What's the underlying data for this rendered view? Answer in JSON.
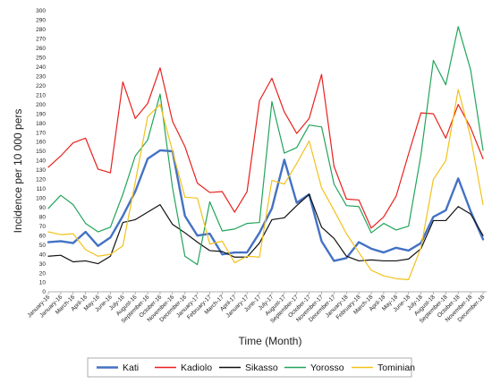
{
  "chart_data": {
    "type": "line",
    "xlabel": "Time (Month)",
    "ylabel": "Incidence per 10 000  pers",
    "ylim": [
      0,
      300
    ],
    "ytick_step": 10,
    "grid": false,
    "legend_position": "bottom",
    "categories": [
      "January-16",
      "January-16",
      "March-16",
      "April-16",
      "May-16",
      "June-16",
      "July-16",
      "August-16",
      "September-16",
      "October-16",
      "November-16",
      "December-16",
      "January-17",
      "February-17",
      "March-17",
      "April-17",
      "January-17",
      "June-17",
      "July-17",
      "August-17",
      "September-17",
      "October-17",
      "November-17",
      "December-17",
      "January-18",
      "February-18",
      "March-18",
      "April-18",
      "May-18",
      "June-18",
      "July-18",
      "August-18",
      "September-18",
      "October-18",
      "November-18",
      "December-18"
    ],
    "series": [
      {
        "name": "Kati",
        "color": "#4472C4",
        "width": 2.4,
        "values": [
          53,
          54,
          52,
          64,
          49,
          58,
          81,
          107,
          142,
          151,
          150,
          81,
          60,
          62,
          40,
          42,
          42,
          63,
          89,
          141,
          95,
          104,
          54,
          33,
          36,
          53,
          46,
          42,
          47,
          44,
          52,
          80,
          87,
          121,
          86,
          56
        ]
      },
      {
        "name": "Kadiolo",
        "color": "#E8211D",
        "width": 1.2,
        "values": [
          133,
          145,
          159,
          164,
          131,
          127,
          224,
          185,
          201,
          239,
          182,
          155,
          116,
          106,
          107,
          85,
          107,
          204,
          228,
          192,
          169,
          185,
          232,
          134,
          99,
          98,
          68,
          80,
          102,
          147,
          191,
          190,
          164,
          200,
          175,
          142
        ]
      },
      {
        "name": "Sikasso",
        "color": "#111111",
        "width": 1.2,
        "values": [
          38,
          39,
          32,
          33,
          30,
          38,
          74,
          77,
          85,
          93,
          72,
          63,
          53,
          44,
          43,
          37,
          37,
          52,
          77,
          79,
          92,
          104,
          69,
          57,
          38,
          33,
          34,
          33,
          33,
          35,
          46,
          76,
          76,
          91,
          83,
          60
        ]
      },
      {
        "name": "Yorosso",
        "color": "#22A45A",
        "width": 1.2,
        "values": [
          89,
          103,
          93,
          73,
          64,
          69,
          104,
          145,
          162,
          211,
          111,
          38,
          29,
          96,
          65,
          67,
          73,
          74,
          203,
          148,
          154,
          178,
          176,
          115,
          92,
          91,
          63,
          73,
          66,
          70,
          146,
          247,
          221,
          283,
          237,
          151
        ]
      },
      {
        "name": "Tominian",
        "color": "#F2C21B",
        "width": 1.2,
        "values": [
          64,
          61,
          62,
          45,
          38,
          40,
          49,
          117,
          187,
          200,
          150,
          101,
          100,
          51,
          54,
          31,
          38,
          37,
          119,
          115,
          137,
          161,
          111,
          87,
          62,
          42,
          23,
          17,
          14,
          13,
          47,
          120,
          140,
          216,
          165,
          93
        ]
      }
    ]
  }
}
